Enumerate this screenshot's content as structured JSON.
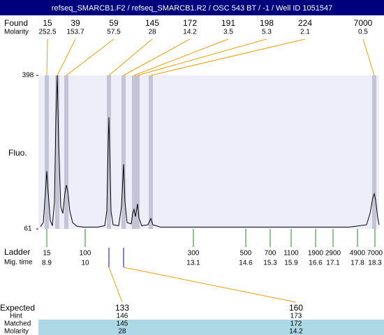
{
  "chart_data": {
    "type": "line",
    "title": "refseq_SMARCB1.F2 / refseq_SMARCB1.R2 / OSC 543 BT / -1 / Well ID 1051547",
    "y_label": "Fluo.",
    "xlim": [
      8.66,
      18.42
    ],
    "ylim": [
      61,
      398
    ],
    "yticks": [
      61,
      398
    ],
    "trace": {
      "x": [
        8.72,
        8.8,
        8.86,
        8.9,
        8.94,
        9.0,
        9.06,
        9.12,
        9.16,
        9.2,
        9.24,
        9.3,
        9.36,
        9.42,
        9.46,
        9.5,
        9.56,
        9.64,
        9.76,
        9.96,
        10.36,
        10.56,
        10.62,
        10.66,
        10.68,
        10.7,
        10.74,
        10.8,
        10.96,
        11.04,
        11.1,
        11.14,
        11.2,
        11.32,
        11.36,
        11.4,
        11.44,
        11.5,
        11.54,
        11.62,
        11.8,
        11.88,
        11.94,
        12.16,
        13.56,
        15.56,
        17.56,
        18.06,
        18.16,
        18.24,
        18.28,
        18.32,
        18.38,
        18.42
      ],
      "values": [
        66,
        75,
        140,
        188,
        140,
        80,
        68,
        120,
        300,
        398,
        250,
        110,
        95,
        140,
        157,
        145,
        100,
        75,
        67,
        65,
        65,
        68,
        100,
        250,
        306,
        240,
        100,
        70,
        68,
        110,
        203,
        120,
        75,
        72,
        95,
        104,
        88,
        116,
        85,
        68,
        70,
        84,
        70,
        65,
        65,
        65,
        65,
        70,
        95,
        130,
        138,
        125,
        85,
        70
      ]
    },
    "found": {
      "label": "Found",
      "molarity_label": "Molarity",
      "peaks": [
        {
          "size": 15,
          "molarity": 252.5,
          "mig_time": 8.9
        },
        {
          "size": 39,
          "molarity": 153.7,
          "mig_time": 9.2
        },
        {
          "size": 59,
          "molarity": 57.5,
          "mig_time": 9.46
        },
        {
          "size": 145,
          "molarity": 28,
          "mig_time": 10.68
        },
        {
          "size": 172,
          "molarity": 14.2,
          "mig_time": 11.1
        },
        {
          "size": 191,
          "molarity": 3.5,
          "mig_time": 11.4
        },
        {
          "size": 198,
          "molarity": 5.3,
          "mig_time": 11.5
        },
        {
          "size": 224,
          "molarity": 2.1,
          "mig_time": 11.88
        },
        {
          "size": 7000,
          "molarity": 0.5,
          "mig_time": 18.28
        }
      ]
    },
    "ladder": {
      "label": "Ladder",
      "time_label": "Mig. time",
      "sizes": [
        15,
        100,
        300,
        500,
        700,
        1100,
        1900,
        2900,
        4900,
        7000
      ],
      "mig_times": [
        8.9,
        10,
        13.1,
        14.6,
        15.3,
        15.9,
        16.6,
        17.1,
        17.8,
        18.3
      ]
    },
    "expected": {
      "labels": {
        "expected": "Expected",
        "hint": "Hint",
        "matched": "Matched",
        "molarity": "Molarity"
      },
      "items": [
        {
          "expected": 133,
          "hint": 146,
          "matched": 145,
          "molarity": 28
        },
        {
          "expected": 160,
          "hint": 173,
          "matched": 172,
          "molarity": 14.2
        }
      ]
    }
  }
}
